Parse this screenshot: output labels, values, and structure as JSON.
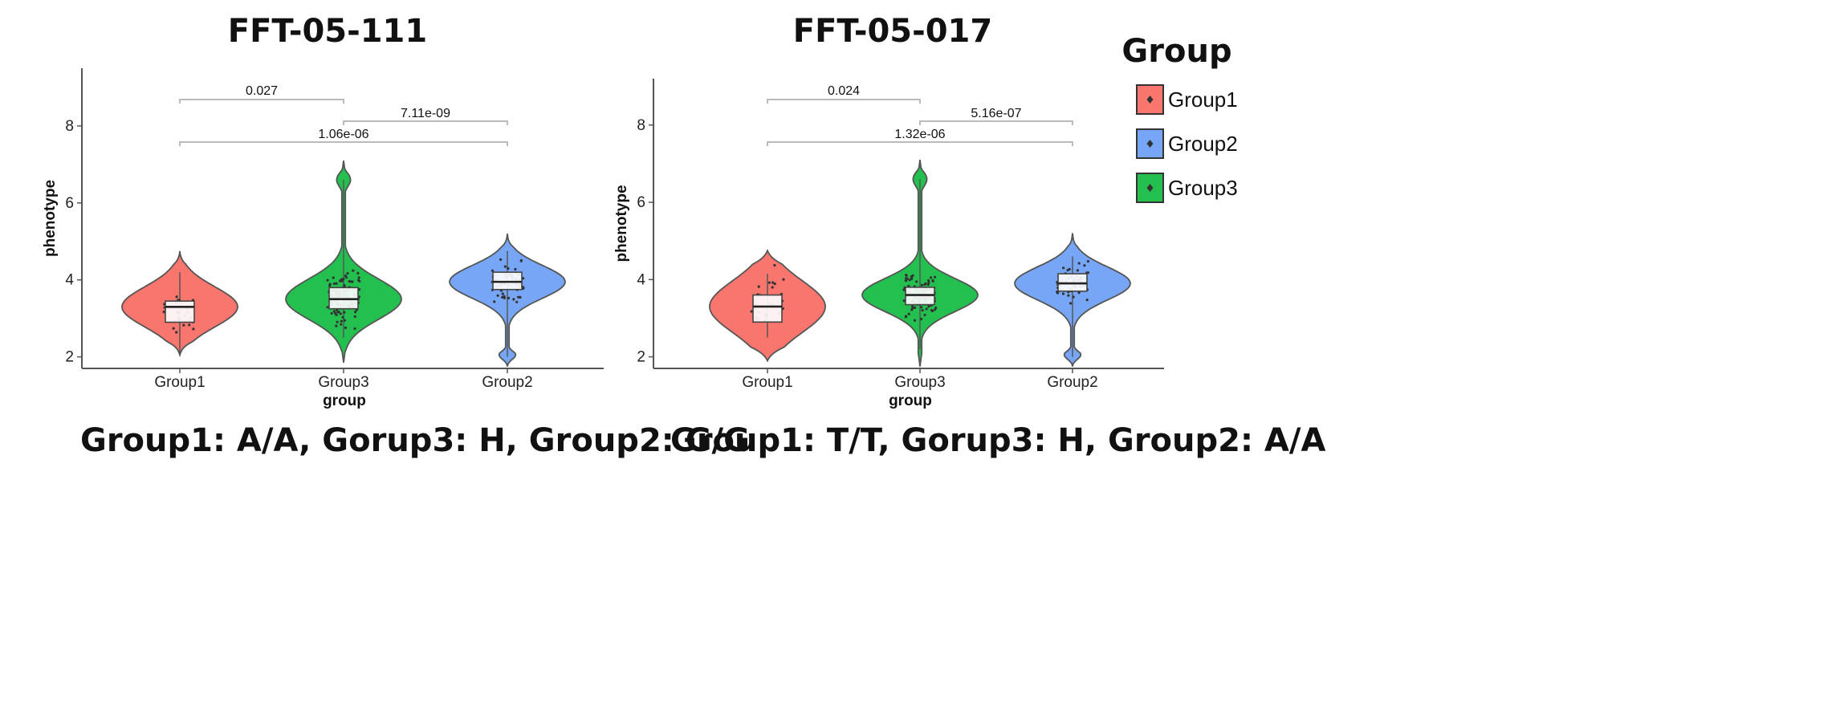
{
  "chart_data": [
    {
      "type": "violin",
      "title": "FFT-05-111",
      "xlabel": "group",
      "ylabel": "phenotype",
      "categories": [
        "Group1",
        "Group3",
        "Group2"
      ],
      "ylim": [
        1.7,
        9.5
      ],
      "yticks": [
        2,
        4,
        6,
        8
      ],
      "series": [
        {
          "name": "Group1",
          "color": "#F8766D",
          "min": 2.1,
          "q1": 2.9,
          "median": 3.3,
          "q3": 3.45,
          "max": 4.2,
          "violin_range": [
            2.05,
            4.75
          ]
        },
        {
          "name": "Group3",
          "color": "#24C04F",
          "min": 2.5,
          "q1": 3.25,
          "median": 3.5,
          "q3": 3.8,
          "max": 6.6,
          "violin_range": [
            1.85,
            7.1
          ]
        },
        {
          "name": "Group2",
          "color": "#77A6F7",
          "min": 2.0,
          "q1": 3.75,
          "median": 3.95,
          "q3": 4.2,
          "max": 4.75,
          "violin_range": [
            1.75,
            5.2
          ]
        }
      ],
      "comparisons": [
        {
          "groups": [
            "Group1",
            "Group3"
          ],
          "p": "0.027"
        },
        {
          "groups": [
            "Group3",
            "Group2"
          ],
          "p": "7.11e-09"
        },
        {
          "groups": [
            "Group1",
            "Group2"
          ],
          "p": "1.06e-06"
        }
      ],
      "caption": "Group1: A/A, Gorup3: H, Group2: G/G"
    },
    {
      "type": "violin",
      "title": "FFT-05-017",
      "xlabel": "group",
      "ylabel": "phenotype",
      "categories": [
        "Group1",
        "Group3",
        "Group2"
      ],
      "ylim": [
        1.7,
        9.2
      ],
      "yticks": [
        2,
        4,
        6,
        8
      ],
      "series": [
        {
          "name": "Group1",
          "color": "#F8766D",
          "min": 2.5,
          "q1": 2.9,
          "median": 3.3,
          "q3": 3.6,
          "max": 4.15,
          "violin_range": [
            1.9,
            4.75
          ]
        },
        {
          "name": "Group3",
          "color": "#24C04F",
          "min": 2.2,
          "q1": 3.35,
          "median": 3.6,
          "q3": 3.8,
          "max": 6.6,
          "violin_range": [
            1.75,
            7.1
          ]
        },
        {
          "name": "Group2",
          "color": "#77A6F7",
          "min": 2.0,
          "q1": 3.7,
          "median": 3.9,
          "q3": 4.15,
          "max": 4.6,
          "violin_range": [
            1.75,
            5.2
          ]
        }
      ],
      "comparisons": [
        {
          "groups": [
            "Group1",
            "Group3"
          ],
          "p": "0.024"
        },
        {
          "groups": [
            "Group3",
            "Group2"
          ],
          "p": "5.16e-07"
        },
        {
          "groups": [
            "Group1",
            "Group2"
          ],
          "p": "1.32e-06"
        }
      ],
      "caption": "Group1: T/T, Gorup3: H, Group2: A/A"
    }
  ],
  "legend": {
    "title": "Group",
    "items": [
      {
        "label": "Group1",
        "color": "#F8766D"
      },
      {
        "label": "Group2",
        "color": "#77A6F7"
      },
      {
        "label": "Group3",
        "color": "#24C04F"
      }
    ]
  }
}
